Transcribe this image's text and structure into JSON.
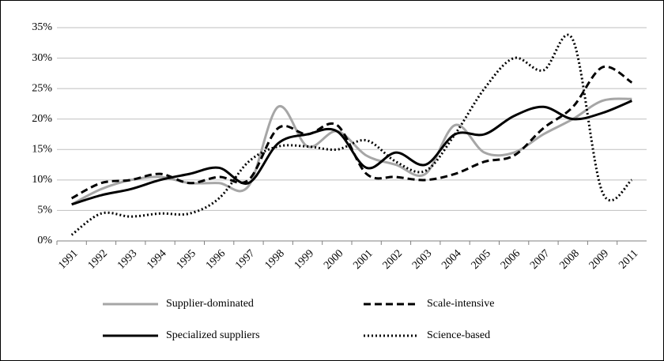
{
  "chart_data": {
    "type": "line",
    "categories": [
      "1991",
      "1992",
      "1993",
      "1994",
      "1995",
      "1996",
      "1997",
      "1998",
      "1999",
      "2000",
      "2001",
      "2002",
      "2003",
      "2004",
      "2005",
      "2006",
      "2007",
      "2008",
      "2009",
      "2011"
    ],
    "ylim": [
      0,
      35
    ],
    "yticks": [
      {
        "value": 0,
        "label": "0%"
      },
      {
        "value": 5,
        "label": "5%"
      },
      {
        "value": 10,
        "label": "10%"
      },
      {
        "value": 15,
        "label": "15%"
      },
      {
        "value": 20,
        "label": "20%"
      },
      {
        "value": 25,
        "label": "25%"
      },
      {
        "value": 30,
        "label": "30%"
      },
      {
        "value": 35,
        "label": "35%"
      }
    ],
    "grid": true,
    "smooth": true,
    "series": [
      {
        "name": "Supplier-dominated",
        "color": "#a6a6a6",
        "dash": "solid",
        "values": [
          6,
          8.5,
          10,
          10.5,
          9.5,
          9.5,
          9,
          22,
          15.5,
          18,
          14,
          12.5,
          11,
          19,
          14.5,
          14.5,
          17.5,
          20,
          23,
          23.3
        ]
      },
      {
        "name": "Scale-intensive",
        "color": "#000000",
        "dash": "dashed",
        "values": [
          7,
          9.5,
          10,
          11,
          9.5,
          10.5,
          10,
          18.5,
          17.5,
          19,
          11,
          10.5,
          10,
          11,
          13,
          14,
          18.5,
          22,
          28.5,
          26
        ]
      },
      {
        "name": "Specialized suppliers",
        "color": "#000000",
        "dash": "solid",
        "values": [
          6,
          7.5,
          8.5,
          10,
          11,
          12,
          9.5,
          16,
          17.5,
          18,
          12,
          14.5,
          12.5,
          17.5,
          17.5,
          20.5,
          22,
          20,
          21,
          23
        ]
      },
      {
        "name": "Science-based",
        "color": "#000000",
        "dash": "dotted",
        "values": [
          1,
          4.5,
          4,
          4.5,
          4.5,
          7,
          13,
          15.5,
          15.5,
          15,
          16.5,
          13,
          11.5,
          17.5,
          25,
          30,
          28,
          33,
          8,
          10
        ]
      }
    ]
  }
}
